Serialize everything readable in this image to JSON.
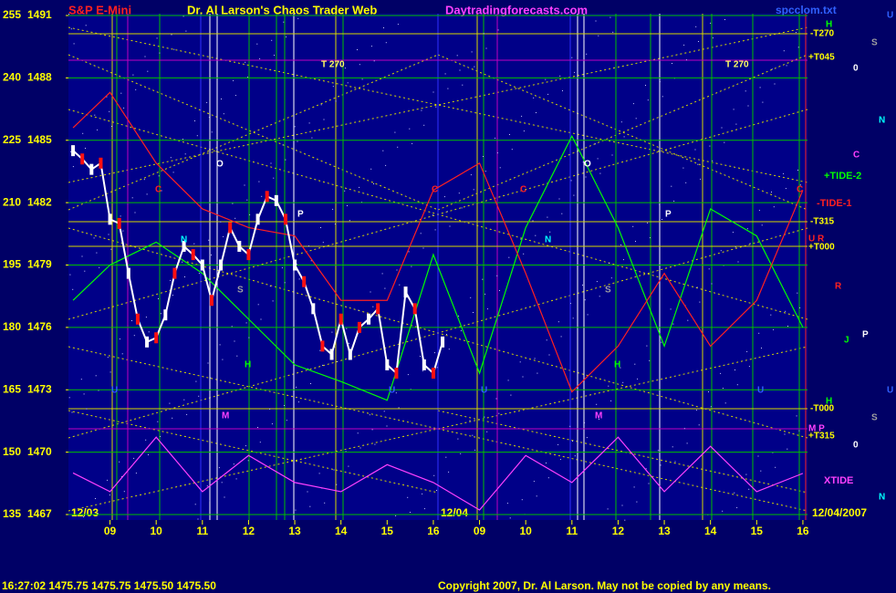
{
  "chart_data": {
    "type": "line",
    "title": "Dr. Al Larson's Chaos Trader Web",
    "symbol": "S&P E-Mini",
    "site": "Daytradingforecasts.com",
    "file": "spcclom.txt",
    "status": "16:27:02  1475.75 1475.75 1475.50 1475.50",
    "copyright": "Copyright 2007, Dr. Al Larson. May not be copied by any means.",
    "dates": [
      "12/03",
      "12/04",
      "12/04/2007"
    ],
    "ylim": [
      1467,
      1491
    ],
    "yticks": [
      1467,
      1470,
      1473,
      1476,
      1479,
      1482,
      1485,
      1488,
      1491
    ],
    "y2lim": [
      135,
      255
    ],
    "y2ticks": [
      135,
      150,
      165,
      180,
      195,
      210,
      225,
      240,
      255
    ],
    "xlim": [
      -0.9,
      15.1
    ],
    "xticks": [
      {
        "value": 0,
        "label": "09"
      },
      {
        "value": 1,
        "label": "10"
      },
      {
        "value": 2,
        "label": "11"
      },
      {
        "value": 3,
        "label": "12"
      },
      {
        "value": 4,
        "label": "13"
      },
      {
        "value": 5,
        "label": "14"
      },
      {
        "value": 6,
        "label": "15"
      },
      {
        "value": 7,
        "label": "16"
      },
      {
        "value": 8,
        "label": "09"
      },
      {
        "value": 9,
        "label": "10"
      },
      {
        "value": 10,
        "label": "11"
      },
      {
        "value": 11,
        "label": "12"
      },
      {
        "value": 12,
        "label": "13"
      },
      {
        "value": 13,
        "label": "14"
      },
      {
        "value": 14,
        "label": "15"
      },
      {
        "value": 15,
        "label": "16"
      }
    ],
    "grid": true,
    "color": "#ffffff",
    "x": [
      -0.8,
      -0.6,
      -0.4,
      -0.2,
      0,
      0.2,
      0.4,
      0.6,
      0.8,
      1,
      1.2,
      1.4,
      1.6,
      1.8,
      2,
      2.2,
      2.4,
      2.6,
      2.8,
      3,
      3.2,
      3.4,
      3.6,
      3.8,
      4,
      4.2,
      4.4,
      4.6,
      4.8,
      5,
      5.2,
      5.4,
      5.6,
      5.8,
      6,
      6.2,
      6.4,
      6.6,
      6.8,
      7,
      7.2
    ],
    "values": [
      1484.5,
      1484.1,
      1483.6,
      1483.9,
      1481.2,
      1481.0,
      1478.6,
      1476.4,
      1475.3,
      1475.5,
      1476.6,
      1478.6,
      1479.9,
      1479.5,
      1479.0,
      1477.3,
      1479.0,
      1480.8,
      1479.9,
      1479.5,
      1481.2,
      1482.3,
      1482.1,
      1481.2,
      1479.0,
      1478.2,
      1476.9,
      1475.1,
      1474.7,
      1476.4,
      1474.7,
      1476.0,
      1476.4,
      1476.9,
      1474.2,
      1473.8,
      1477.7,
      1476.9,
      1474.2,
      1473.8,
      1475.3
    ],
    "series": [
      {
        "name": "+TIDE-2",
        "color": "#00ff00",
        "x": [
          -0.8,
          0,
          1,
          2,
          3,
          4,
          5,
          6,
          7,
          8,
          9,
          10,
          11,
          12,
          13,
          14,
          15
        ],
        "values": [
          1477.3,
          1479.0,
          1480.1,
          1478.6,
          1476.4,
          1474.2,
          1473.4,
          1472.5,
          1479.5,
          1473.8,
          1480.8,
          1485.2,
          1480.8,
          1475.1,
          1481.7,
          1480.4,
          1476.0
        ]
      },
      {
        "name": "-TIDE-1",
        "color": "#ff2020",
        "x": [
          -0.8,
          0,
          1,
          2,
          3,
          4,
          5,
          6,
          7,
          8,
          9,
          10,
          11,
          12,
          13,
          14,
          15
        ],
        "values": [
          1485.6,
          1487.3,
          1483.9,
          1481.7,
          1480.8,
          1480.4,
          1477.3,
          1477.3,
          1482.6,
          1483.9,
          1478.6,
          1472.9,
          1475.1,
          1478.6,
          1475.1,
          1477.3,
          1482.6
        ]
      },
      {
        "name": "XTIDE",
        "color": "#ff40ff",
        "axis": "y2",
        "x": [
          -0.8,
          0,
          1,
          2,
          3,
          4,
          5,
          6,
          7,
          8,
          9,
          10,
          11,
          12,
          13,
          14,
          15
        ],
        "values": [
          145.0,
          140.5,
          153.6,
          140.5,
          149.2,
          142.7,
          140.5,
          147.0,
          142.7,
          136.1,
          149.2,
          142.7,
          153.6,
          140.5,
          151.4,
          140.5,
          144.9
        ]
      }
    ],
    "annotations": [
      "T 270",
      "T 270",
      "O",
      "O",
      "C",
      "C",
      "C",
      "C",
      "P",
      "P",
      "N",
      "N",
      "S",
      "S",
      "H",
      "H",
      "M",
      "M",
      "U",
      "U",
      "U",
      "U",
      "H",
      "U",
      "-T270",
      "S",
      "+T045",
      "0",
      "N",
      "C",
      "-T315",
      "U R",
      "+T000",
      "R",
      "P",
      "J",
      "H",
      "-T000",
      "U",
      "S",
      "M P",
      "+T315",
      "0",
      "N"
    ]
  }
}
